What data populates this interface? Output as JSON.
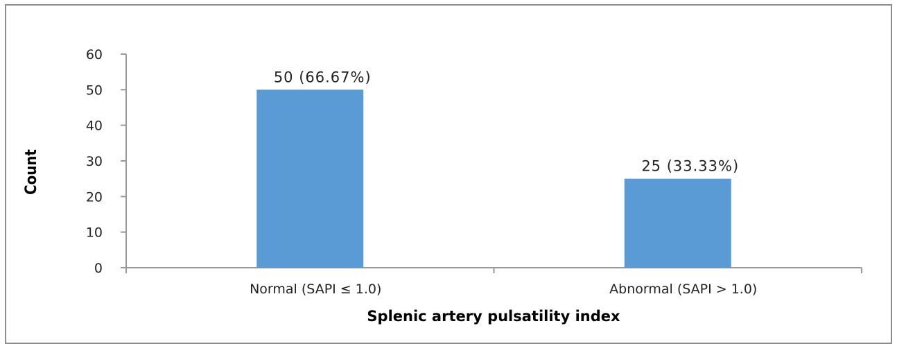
{
  "chart_data": {
    "type": "bar",
    "categories": [
      "Normal (SAPI ≤ 1.0)",
      "Abnormal (SAPI > 1.0)"
    ],
    "values": [
      50,
      25
    ],
    "data_labels": [
      "50 (66.67%)",
      "25 (33.33%)"
    ],
    "title": "",
    "xlabel": "Splenic artery pulsatility index",
    "ylabel": "Count",
    "ylim": [
      0,
      60
    ],
    "yticks": [
      0,
      10,
      20,
      30,
      40,
      50,
      60
    ],
    "grid": false,
    "legend": "none",
    "colors": {
      "bar": "#5b9bd5",
      "axis": "#9a9a9a",
      "text": "#222222"
    }
  }
}
